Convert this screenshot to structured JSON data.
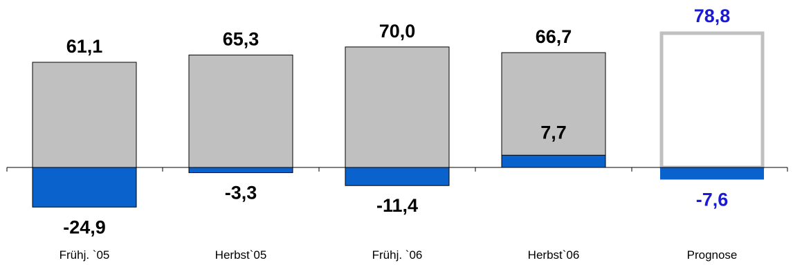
{
  "chart_data": {
    "type": "bar",
    "categories": [
      "Frühj. `05",
      "Herbst`05",
      "Frühj. `06",
      "Herbst`06",
      "Prognose"
    ],
    "series": [
      {
        "values": [
          61.1,
          65.3,
          70.0,
          66.7,
          78.8
        ],
        "labels": [
          "61,1",
          "65,3",
          "70,0",
          "66,7",
          "78,8"
        ]
      },
      {
        "values": [
          -24.9,
          -3.3,
          -11.4,
          7.7,
          -7.6
        ],
        "labels": [
          "-24,9",
          "-3,3",
          "-11,4",
          "7,7",
          "-7,6"
        ]
      }
    ],
    "forecast_index": 4,
    "grid": false,
    "colors": {
      "grey_bar": "#c0c0c0",
      "blue_bar": "#0a62cc",
      "forecast_outline": "#c0c0c0",
      "forecast_text": "#1a1ad4",
      "text": "#000000"
    }
  }
}
